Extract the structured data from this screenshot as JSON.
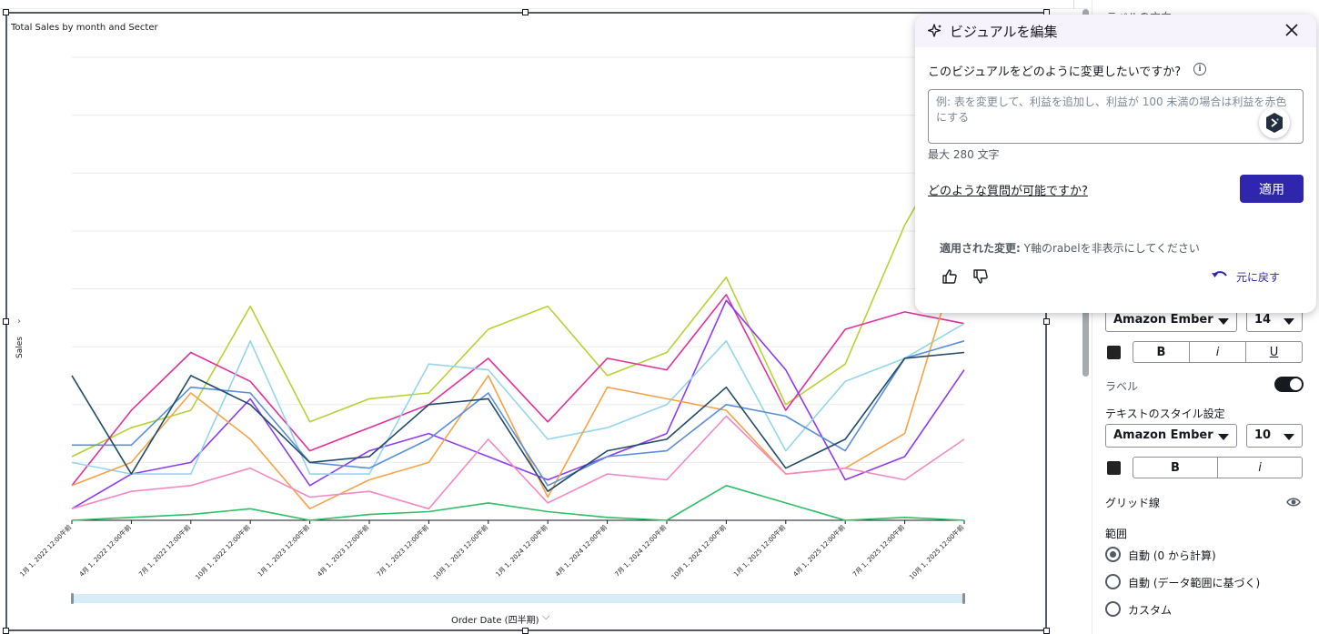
{
  "visual": {
    "title": "Total Sales by month and Secter",
    "y_axis_label": "Sales",
    "x_axis_label": "Order Date (四半期)"
  },
  "chart_data": {
    "type": "line",
    "title": "Total Sales by month and Secter",
    "xlabel": "Order Date (四半期)",
    "ylabel": "Sales",
    "y_tick_labels_hidden": true,
    "ylim": [
      0,
      8
    ],
    "grid": true,
    "categories": [
      "1月 1, 2022 12:00午前",
      "4月 1, 2022 12:00午前",
      "7月 1, 2022 12:00午前",
      "10月 1, 2022 12:00午前",
      "1月 1, 2023 12:00午前",
      "4月 1, 2023 12:00午前",
      "7月 1, 2023 12:00午前",
      "10月 1, 2023 12:00午前",
      "1月 1, 2024 12:00午前",
      "4月 1, 2024 12:00午前",
      "7月 1, 2024 12:00午前",
      "10月 1, 2024 12:00午前",
      "1月 1, 2025 12:00午前",
      "4月 1, 2025 12:00午前",
      "7月 1, 2025 12:00午前",
      "10月 1, 2025 12:00午前"
    ],
    "series": [
      {
        "color": "#b5d334",
        "values": [
          1.1,
          1.6,
          1.9,
          3.7,
          1.7,
          2.1,
          2.2,
          3.3,
          3.7,
          2.5,
          2.9,
          4.2,
          2.0,
          2.7,
          5.1,
          6.9
        ]
      },
      {
        "color": "#e0319d",
        "values": [
          0.6,
          1.9,
          2.9,
          2.4,
          1.2,
          1.6,
          2.0,
          2.8,
          1.7,
          2.8,
          2.6,
          3.9,
          1.9,
          3.3,
          3.6,
          3.4
        ]
      },
      {
        "color": "#8e3cf0",
        "values": [
          0.2,
          0.8,
          1.0,
          2.1,
          0.6,
          1.2,
          1.5,
          1.1,
          0.7,
          1.1,
          1.5,
          3.8,
          2.6,
          0.7,
          1.1,
          2.6
        ]
      },
      {
        "color": "#93d6eb",
        "values": [
          1.0,
          0.8,
          0.8,
          3.1,
          0.8,
          0.8,
          2.7,
          2.6,
          1.4,
          1.6,
          2.0,
          3.1,
          1.2,
          2.4,
          2.8,
          3.4
        ]
      },
      {
        "color": "#f6a348",
        "values": [
          0.6,
          1.0,
          2.2,
          1.4,
          0.2,
          0.7,
          1.0,
          2.5,
          0.4,
          2.3,
          2.1,
          1.9,
          0.8,
          0.9,
          1.5,
          4.9
        ]
      },
      {
        "color": "#5a8fd6",
        "values": [
          1.3,
          1.3,
          2.3,
          2.2,
          1.0,
          0.9,
          1.4,
          2.2,
          0.6,
          1.1,
          1.2,
          2.0,
          1.8,
          1.2,
          2.8,
          3.1
        ]
      },
      {
        "color": "#204c68",
        "values": [
          2.5,
          0.8,
          2.5,
          2.0,
          1.0,
          1.1,
          2.0,
          2.1,
          0.5,
          1.2,
          1.4,
          2.3,
          0.9,
          1.4,
          2.8,
          2.9
        ]
      },
      {
        "color": "#f28ac4",
        "values": [
          0.2,
          0.5,
          0.6,
          0.9,
          0.4,
          0.5,
          0.2,
          1.4,
          0.3,
          0.8,
          0.7,
          1.8,
          0.8,
          0.9,
          0.7,
          1.4
        ]
      },
      {
        "color": "#2cbf65",
        "values": [
          0.0,
          0.05,
          0.1,
          0.2,
          0.0,
          0.1,
          0.15,
          0.3,
          0.15,
          0.05,
          0.0,
          0.6,
          0.3,
          0.0,
          0.05,
          0.0
        ]
      }
    ]
  },
  "panel": {
    "peek_label": "ラベルの方向",
    "font_family_1": "Amazon Ember",
    "font_size_1": "14",
    "bold": "B",
    "italic": "i",
    "underline": "U",
    "label_toggle": "ラベル",
    "text_style_heading": "テキストのスタイル設定",
    "font_family_2": "Amazon Ember",
    "font_size_2": "10",
    "gridlines": "グリッド線",
    "range_heading": "範囲",
    "range_options": [
      "自動 (0 から計算)",
      "自動 (データ範囲に基づく)",
      "カスタム"
    ],
    "range_selected_index": 0
  },
  "popover": {
    "title": "ビジュアルを編集",
    "question": "このビジュアルをどのように変更したいですか?",
    "placeholder": "例: 表を変更して、利益を追加し、利益が 100 未満の場合は利益を赤色にする",
    "max_chars": "最大 280 文字",
    "help_link": "どのような質問が可能ですか?",
    "apply_label": "適用",
    "applied_prefix": "適用された変更:",
    "applied_text": " Y軸のrabelを非表示にしてください",
    "undo_label": "元に戻す"
  },
  "colors": {
    "accent": "#2e27ad",
    "popover_header": "#f6f3fc"
  }
}
